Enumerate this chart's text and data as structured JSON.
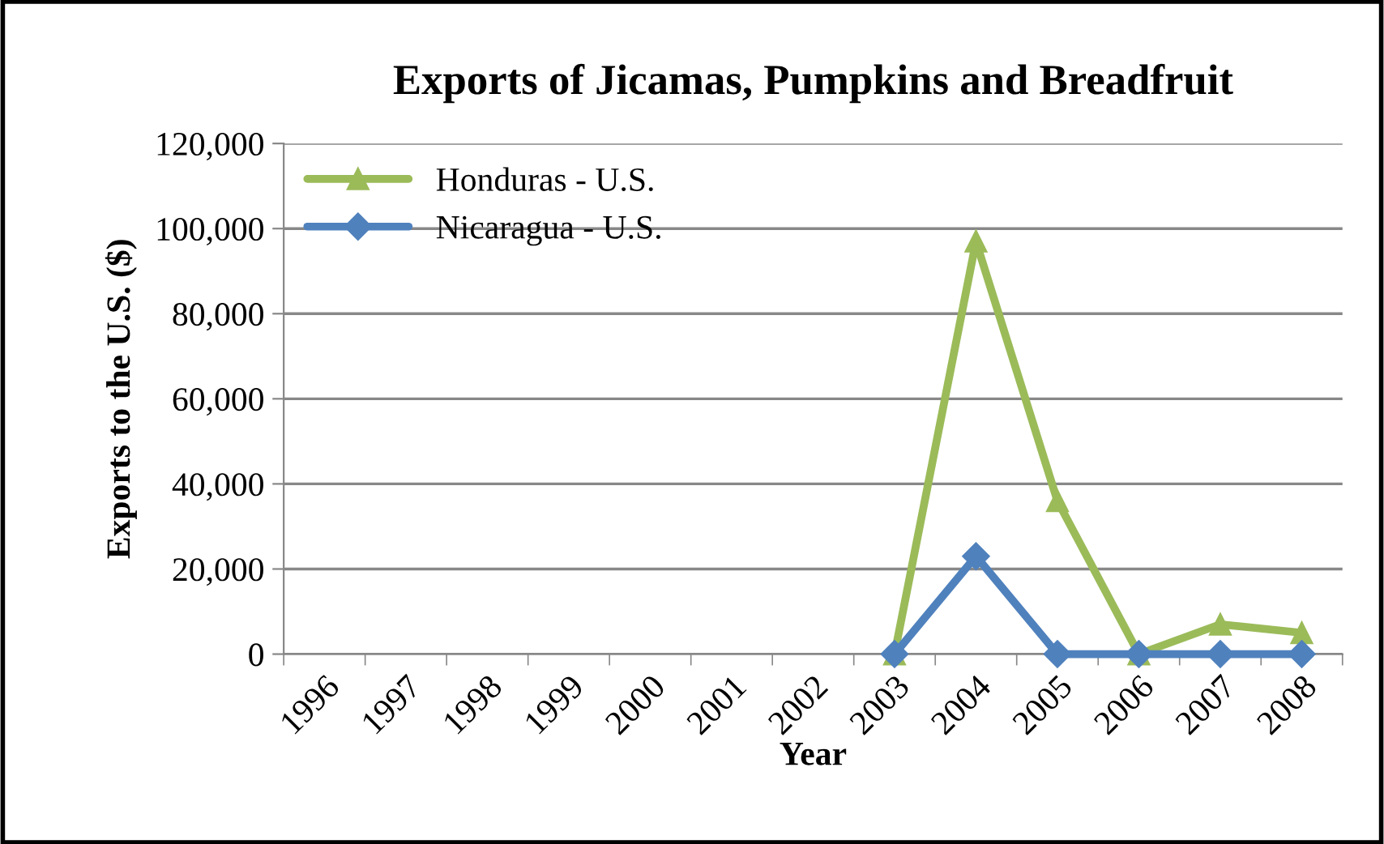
{
  "chart_data": {
    "type": "line",
    "title": "Exports of Jicamas, Pumpkins and Breadfruit",
    "xlabel": "Year",
    "ylabel": "Exports to the U.S. ($)",
    "categories": [
      "1996",
      "1997",
      "1998",
      "1999",
      "2000",
      "2001",
      "2002",
      "2003",
      "2004",
      "2005",
      "2006",
      "2007",
      "2008"
    ],
    "series": [
      {
        "name": "Honduras - U.S.",
        "color": "#9bbb59",
        "marker": "triangle",
        "values": [
          null,
          null,
          null,
          null,
          null,
          null,
          null,
          0,
          97000,
          36000,
          0,
          7000,
          5000
        ]
      },
      {
        "name": "Nicaragua - U.S.",
        "color": "#4f81bd",
        "marker": "diamond",
        "values": [
          null,
          null,
          null,
          null,
          null,
          null,
          null,
          0,
          23000,
          0,
          0,
          0,
          0
        ]
      }
    ],
    "ylim": [
      0,
      120000
    ],
    "yticks": [
      {
        "value": 0,
        "label": "0"
      },
      {
        "value": 20000,
        "label": "20,000"
      },
      {
        "value": 40000,
        "label": "40,000"
      },
      {
        "value": 60000,
        "label": "60,000"
      },
      {
        "value": 80000,
        "label": "80,000"
      },
      {
        "value": 100000,
        "label": "100,000"
      },
      {
        "value": 120000,
        "label": "120,000"
      }
    ],
    "grid": "y",
    "legend": "top left",
    "line_style": "solid"
  }
}
